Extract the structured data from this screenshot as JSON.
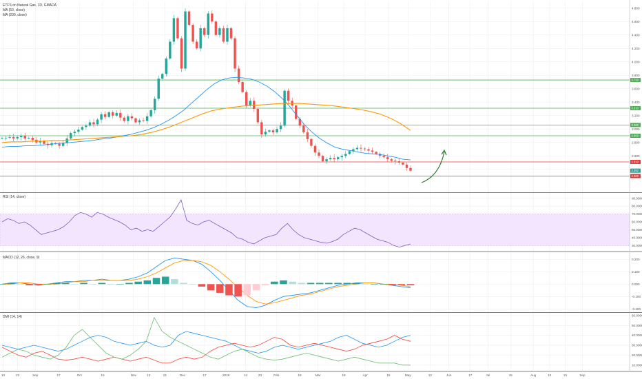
{
  "colors": {
    "up": "#26a69a",
    "down": "#ef5350",
    "ma50": "#2196f3",
    "ma200": "#ff9800",
    "support_green": "#4caf50",
    "level_red": "#e53935",
    "rsi_line": "#7e57c2",
    "rsi_band": "#f3e5fd",
    "macd_line": "#2196f3",
    "macd_signal": "#ff9800",
    "dmi_plus": "#2196f3",
    "dmi_minus": "#f44336",
    "adx": "#66bb6a",
    "arrow": "#2e7d32",
    "grid": "#eeeeee",
    "separator": "#555555"
  },
  "icons": [
    "curved-up-arrow-icon"
  ],
  "chart_data": [
    {
      "pane": "price",
      "type": "candlestick",
      "title": "ETFS on Natural Gas, 1D, GMADA",
      "legend": [
        "MA (50, close)",
        "MA (200, close)"
      ],
      "yaxis_side": "right",
      "ylim": [
        2.1,
        4.9
      ],
      "ticks": [
        {
          "v": 4.8,
          "label": "4.800"
        },
        {
          "v": 4.6,
          "label": "4.600"
        },
        {
          "v": 4.4,
          "label": "4.400"
        },
        {
          "v": 4.2,
          "label": "4.200"
        },
        {
          "v": 4.0,
          "label": "4.000"
        },
        {
          "v": 3.8,
          "label": "3.800"
        },
        {
          "v": 3.6,
          "label": "3.600"
        },
        {
          "v": 3.4,
          "label": "3.400"
        },
        {
          "v": 3.2,
          "label": "3.200"
        },
        {
          "v": 3.0,
          "label": "3.000"
        },
        {
          "v": 2.8,
          "label": "2.800"
        },
        {
          "v": 2.6,
          "label": "2.600"
        },
        {
          "v": 2.4,
          "label": "2.400"
        }
      ],
      "hlines": [
        {
          "v": 3.73,
          "color": "green",
          "tag": "3.730"
        },
        {
          "v": 3.31,
          "color": "green",
          "tag": "3.310"
        },
        {
          "v": 3.06,
          "color": "green",
          "tag": "3.060"
        },
        {
          "v": 2.9,
          "color": "green",
          "tag": "2.900"
        },
        {
          "v": 2.51,
          "color": "red",
          "tag": "2.510"
        },
        {
          "v": 2.3,
          "color": "red",
          "tag": "2.300"
        }
      ],
      "price_tag": {
        "v": 2.38,
        "label": "2.382"
      },
      "close_series": [
        2.87,
        2.87,
        2.88,
        2.86,
        2.88,
        2.9,
        2.86,
        2.87,
        2.84,
        2.8,
        2.82,
        2.78,
        2.76,
        2.79,
        2.78,
        2.75,
        2.79,
        2.86,
        2.94,
        2.96,
        2.99,
        3.03,
        3.05,
        3.1,
        3.07,
        3.14,
        3.22,
        3.18,
        3.25,
        3.2,
        3.24,
        3.17,
        3.12,
        3.19,
        3.16,
        3.1,
        3.13,
        3.12,
        3.19,
        3.28,
        3.45,
        3.75,
        3.82,
        4.05,
        4.3,
        4.65,
        4.35,
        3.9,
        4.75,
        4.55,
        4.3,
        4.2,
        4.5,
        4.4,
        4.72,
        4.6,
        4.4,
        4.5,
        4.3,
        4.5,
        4.35,
        3.9,
        3.7,
        3.55,
        3.35,
        3.42,
        3.3,
        3.1,
        2.92,
        2.96,
        2.98,
        2.95,
        3.0,
        3.05,
        3.57,
        3.42,
        3.35,
        3.15,
        3.05,
        2.95,
        2.85,
        2.75,
        2.65,
        2.6,
        2.52,
        2.55,
        2.57,
        2.55,
        2.58,
        2.6,
        2.63,
        2.67,
        2.7,
        2.72,
        2.71,
        2.7,
        2.68,
        2.66,
        2.63,
        2.6,
        2.58,
        2.55,
        2.53,
        2.52,
        2.5,
        2.47,
        2.42,
        2.38
      ],
      "ma50_series": [
        2.73,
        2.74,
        2.74,
        2.75,
        2.75,
        2.76,
        2.77,
        2.78,
        2.79,
        2.8,
        2.81,
        2.82,
        2.83,
        2.85,
        2.86,
        2.88,
        2.9,
        2.92,
        2.95,
        2.98,
        3.02,
        3.07,
        3.13,
        3.2,
        3.28,
        3.38,
        3.48,
        3.58,
        3.67,
        3.73,
        3.76,
        3.77,
        3.76,
        3.74,
        3.7,
        3.64,
        3.56,
        3.46,
        3.34,
        3.2,
        3.06,
        2.95,
        2.86,
        2.79,
        2.73,
        2.7,
        2.68,
        2.66,
        2.64,
        2.63,
        2.62,
        2.6,
        2.58,
        2.55,
        2.54
      ],
      "ma200_series": [
        2.8,
        2.81,
        2.81,
        2.82,
        2.82,
        2.83,
        2.83,
        2.84,
        2.85,
        2.86,
        2.87,
        2.88,
        2.89,
        2.9,
        2.92,
        2.95,
        2.99,
        3.04,
        3.1,
        3.16,
        3.22,
        3.27,
        3.3,
        3.32,
        3.34,
        3.35,
        3.36,
        3.37,
        3.38,
        3.38,
        3.38,
        3.37,
        3.36,
        3.35,
        3.33,
        3.31,
        3.29,
        3.26,
        3.22,
        3.16,
        3.08,
        2.98
      ]
    },
    {
      "pane": "rsi",
      "type": "line",
      "title": "RSI (14, close)",
      "ylim": [
        25,
        95
      ],
      "band": [
        30,
        70
      ],
      "ticks": [
        {
          "v": 90,
          "label": "90.0000"
        },
        {
          "v": 80,
          "label": "80.0000"
        },
        {
          "v": 70,
          "label": "70.0000"
        },
        {
          "v": 60,
          "label": "60.0000"
        },
        {
          "v": 50,
          "label": "50.0000"
        },
        {
          "v": 40,
          "label": "40.0000"
        },
        {
          "v": 30,
          "label": "30.0000"
        }
      ],
      "values": [
        60,
        64,
        62,
        58,
        60,
        56,
        50,
        44,
        46,
        48,
        50,
        54,
        60,
        68,
        72,
        70,
        66,
        72,
        70,
        66,
        63,
        60,
        56,
        50,
        52,
        48,
        50,
        48,
        54,
        60,
        66,
        76,
        88,
        62,
        58,
        56,
        60,
        62,
        58,
        54,
        50,
        46,
        40,
        38,
        34,
        32,
        36,
        40,
        42,
        44,
        52,
        58,
        50,
        44,
        40,
        38,
        36,
        34,
        33,
        35,
        38,
        44,
        48,
        52,
        50,
        46,
        42,
        38,
        36,
        34,
        30,
        28,
        30,
        32
      ]
    },
    {
      "pane": "macd",
      "type": "line+histogram",
      "title": "MACD (12, 26, close, 9)",
      "ylim": [
        -0.22,
        0.24
      ],
      "ticks": [
        {
          "v": 0.2,
          "label": "0.200"
        },
        {
          "v": 0.1,
          "label": "0.100"
        },
        {
          "v": 0.0,
          "label": "0.000"
        },
        {
          "v": -0.1,
          "label": "-0.100"
        },
        {
          "v": -0.2,
          "label": "-0.200"
        }
      ],
      "macd": [
        0.0,
        0.01,
        0.01,
        0.0,
        -0.01,
        0.0,
        0.01,
        0.02,
        0.02,
        0.03,
        0.03,
        0.04,
        0.03,
        0.03,
        0.04,
        0.06,
        0.09,
        0.14,
        0.19,
        0.21,
        0.2,
        0.19,
        0.16,
        0.1,
        0.03,
        -0.05,
        -0.13,
        -0.18,
        -0.19,
        -0.17,
        -0.13,
        -0.1,
        -0.09,
        -0.08,
        -0.07,
        -0.05,
        -0.03,
        -0.01,
        0.0,
        0.01,
        0.01,
        0.01,
        0.0,
        -0.01,
        -0.02,
        -0.03
      ],
      "signal": [
        0.0,
        0.0,
        0.01,
        0.01,
        0.0,
        0.0,
        0.0,
        0.01,
        0.02,
        0.02,
        0.03,
        0.03,
        0.03,
        0.03,
        0.03,
        0.04,
        0.06,
        0.09,
        0.13,
        0.17,
        0.19,
        0.19,
        0.18,
        0.15,
        0.1,
        0.04,
        -0.03,
        -0.09,
        -0.14,
        -0.16,
        -0.15,
        -0.13,
        -0.11,
        -0.09,
        -0.08,
        -0.06,
        -0.04,
        -0.02,
        -0.01,
        0.0,
        0.01,
        0.01,
        0.0,
        0.0,
        -0.01,
        -0.02
      ],
      "histogram": [
        0.0,
        0.01,
        0.0,
        -0.01,
        -0.01,
        0.0,
        0.01,
        0.01,
        0.0,
        0.01,
        0.0,
        0.01,
        0.0,
        0.0,
        0.01,
        0.02,
        0.03,
        0.05,
        0.06,
        0.04,
        0.01,
        0.0,
        -0.02,
        -0.05,
        -0.07,
        -0.09,
        -0.1,
        -0.09,
        -0.05,
        -0.01,
        0.02,
        0.03,
        0.02,
        0.01,
        0.01,
        0.01,
        0.01,
        0.01,
        0.01,
        0.01,
        0.0,
        0.0,
        0.0,
        -0.01,
        -0.01,
        -0.01
      ]
    },
    {
      "pane": "dmi",
      "type": "line",
      "title": "DMI (14, 14)",
      "ylim": [
        5,
        62
      ],
      "ticks": [
        {
          "v": 60,
          "label": "60.0000"
        },
        {
          "v": 50,
          "label": "50.0000"
        },
        {
          "v": 40,
          "label": "40.0000"
        },
        {
          "v": 30,
          "label": "30.0000"
        },
        {
          "v": 20,
          "label": "20.0000"
        },
        {
          "v": 10,
          "label": "10.0000"
        }
      ],
      "plus_di": [
        30,
        28,
        26,
        28,
        30,
        28,
        26,
        24,
        26,
        30,
        34,
        38,
        40,
        38,
        34,
        32,
        30,
        32,
        34,
        30,
        28,
        30,
        40,
        44,
        42,
        40,
        38,
        36,
        34,
        30,
        26,
        24,
        22,
        24,
        28,
        30,
        28,
        26,
        28,
        30,
        32,
        34,
        38,
        40,
        36,
        32,
        30,
        28,
        30,
        34,
        38,
        40
      ],
      "minus_di": [
        28,
        24,
        20,
        18,
        22,
        24,
        20,
        16,
        15,
        16,
        18,
        16,
        14,
        16,
        18,
        16,
        14,
        16,
        18,
        15,
        12,
        12,
        16,
        18,
        16,
        18,
        24,
        28,
        30,
        32,
        30,
        28,
        30,
        34,
        38,
        36,
        30,
        28,
        30,
        32,
        30,
        28,
        26,
        24,
        26,
        30,
        32,
        34,
        36,
        40,
        36,
        34
      ],
      "adx": [
        18,
        22,
        26,
        24,
        20,
        18,
        16,
        20,
        28,
        40,
        46,
        38,
        30,
        22,
        18,
        16,
        20,
        26,
        34,
        58,
        44,
        38,
        34,
        30,
        26,
        22,
        18,
        16,
        20,
        24,
        26,
        22,
        18,
        16,
        15,
        16,
        18,
        20,
        22,
        20,
        18,
        16,
        14,
        16,
        18,
        16,
        14,
        12,
        12,
        12,
        10,
        10
      ]
    }
  ],
  "time_axis": [
    {
      "label": "13",
      "f": 0.005
    },
    {
      "label": "22",
      "f": 0.028
    },
    {
      "label": "Sep",
      "f": 0.056
    },
    {
      "label": "17",
      "f": 0.093
    },
    {
      "label": "Oct",
      "f": 0.126
    },
    {
      "label": "15",
      "f": 0.163
    },
    {
      "label": "Nov",
      "f": 0.212
    },
    {
      "label": "12",
      "f": 0.236
    },
    {
      "label": "21",
      "f": 0.262
    },
    {
      "label": "Dec",
      "f": 0.29
    },
    {
      "label": "17",
      "f": 0.325
    },
    {
      "label": "2019",
      "f": 0.359
    },
    {
      "label": "14",
      "f": 0.39
    },
    {
      "label": "23",
      "f": 0.413
    },
    {
      "label": "Feb",
      "f": 0.439
    },
    {
      "label": "18",
      "f": 0.476
    },
    {
      "label": "Mar",
      "f": 0.505
    },
    {
      "label": "18",
      "f": 0.546
    },
    {
      "label": "Apr",
      "f": 0.58
    },
    {
      "label": "15",
      "f": 0.617
    },
    {
      "label": "May",
      "f": 0.648
    },
    {
      "label": "13",
      "f": 0.683
    },
    {
      "label": "Jun",
      "f": 0.713
    },
    {
      "label": "17",
      "f": 0.747
    },
    {
      "label": "Jul",
      "f": 0.775
    },
    {
      "label": "15",
      "f": 0.811
    },
    {
      "label": "Aug",
      "f": 0.847
    },
    {
      "label": "12",
      "f": 0.873
    },
    {
      "label": "21",
      "f": 0.898
    },
    {
      "label": "Sep",
      "f": 0.925
    }
  ]
}
